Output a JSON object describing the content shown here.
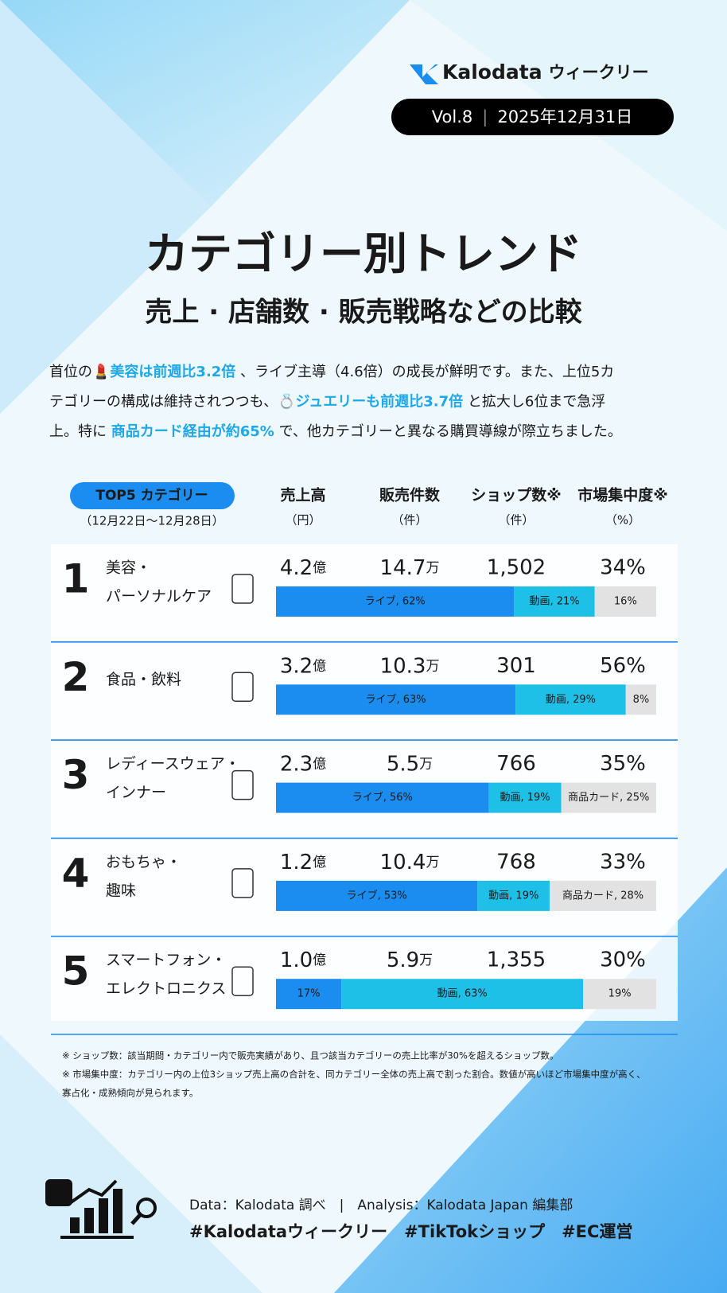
{
  "header": {
    "brand": "Kalodata",
    "series": "ウィークリー",
    "issue": "Vol.8",
    "separator": "|",
    "date": "2025年12月31日"
  },
  "title": "カテゴリー別トレンド",
  "subtitle": "売上 · 店舗数 · 販売戦略などの比較",
  "paragraph": {
    "lines": [
      [
        {
          "text": "首位の💄",
          "highlight": false
        },
        {
          "text": "美容は前週比3.2倍",
          "highlight": true
        },
        {
          "text": " 、ライブ主導（4.6倍）の成長が鮮明です。また、上位5カ",
          "highlight": false
        }
      ],
      [
        {
          "text": "テゴリーの構成は維持されつつも、💍",
          "highlight": false
        },
        {
          "text": "ジュエリーも前週比3.7倍",
          "highlight": true
        },
        {
          "text": " と拡大し6位まで急浮",
          "highlight": false
        }
      ],
      [
        {
          "text": "上。特に ",
          "highlight": false
        },
        {
          "text": "商品カード経由が約65%",
          "highlight": true
        },
        {
          "text": " で、他カテゴリーと異なる購買導線が際立ちました。",
          "highlight": false
        }
      ]
    ]
  },
  "table": {
    "badge": "TOP5 カテゴリー",
    "period": "（12月22日～12月28日）",
    "columns": [
      {
        "label": "売上高",
        "unit": "（円）"
      },
      {
        "label": "販売件数",
        "unit": "（件）"
      },
      {
        "label": "ショップ数※",
        "unit": "（件）"
      },
      {
        "label": "市場集中度※",
        "unit": "（%）"
      }
    ],
    "segment_colors": {
      "live": "#1b8cf0",
      "video": "#1ec0e8",
      "other": "#e2e2e2"
    },
    "rows": [
      {
        "rank": "1",
        "name": [
          "美容・",
          "パーソナルケア"
        ],
        "sales": {
          "value": "4.2",
          "unit": "億"
        },
        "count": {
          "value": "14.7",
          "unit": "万"
        },
        "shops": "1,502",
        "concentration": "34%",
        "segments": [
          {
            "label": "ライブ, 62%",
            "value": 62,
            "kind": "live"
          },
          {
            "label": "動画, 21%",
            "value": 21,
            "kind": "video"
          },
          {
            "label": "16%",
            "value": 16,
            "kind": "other"
          }
        ]
      },
      {
        "rank": "2",
        "name": [
          "食品・飲料"
        ],
        "sales": {
          "value": "3.2",
          "unit": "億"
        },
        "count": {
          "value": "10.3",
          "unit": "万"
        },
        "shops": "301",
        "concentration": "56%",
        "segments": [
          {
            "label": "ライブ, 63%",
            "value": 63,
            "kind": "live"
          },
          {
            "label": "動画, 29%",
            "value": 29,
            "kind": "video"
          },
          {
            "label": "8%",
            "value": 8,
            "kind": "other"
          }
        ]
      },
      {
        "rank": "3",
        "name": [
          "レディースウェア・",
          "インナー"
        ],
        "sales": {
          "value": "2.3",
          "unit": "億"
        },
        "count": {
          "value": "5.5",
          "unit": "万"
        },
        "shops": "766",
        "concentration": "35%",
        "segments": [
          {
            "label": "ライブ, 56%",
            "value": 56,
            "kind": "live"
          },
          {
            "label": "動画, 19%",
            "value": 19,
            "kind": "video"
          },
          {
            "label": "商品カード, 25%",
            "value": 25,
            "kind": "other"
          }
        ]
      },
      {
        "rank": "4",
        "name": [
          "おもちゃ・",
          "趣味"
        ],
        "sales": {
          "value": "1.2",
          "unit": "億"
        },
        "count": {
          "value": "10.4",
          "unit": "万"
        },
        "shops": "768",
        "concentration": "33%",
        "segments": [
          {
            "label": "ライブ, 53%",
            "value": 53,
            "kind": "live"
          },
          {
            "label": "動画, 19%",
            "value": 19,
            "kind": "video"
          },
          {
            "label": "商品カード, 28%",
            "value": 28,
            "kind": "other"
          }
        ]
      },
      {
        "rank": "5",
        "name": [
          "スマートフォン・",
          "エレクトロニクス"
        ],
        "sales": {
          "value": "1.0",
          "unit": "億"
        },
        "count": {
          "value": "5.9",
          "unit": "万"
        },
        "shops": "1,355",
        "concentration": "30%",
        "segments": [
          {
            "label": "17%",
            "value": 17,
            "kind": "live"
          },
          {
            "label": "動画, 63%",
            "value": 63,
            "kind": "video"
          },
          {
            "label": "19%",
            "value": 19,
            "kind": "other"
          }
        ]
      }
    ]
  },
  "notes": [
    "※ ショップ数：該当期間・カテゴリー内で販売実績があり、且つ該当カテゴリーの売上比率が30%を超えるショップ数。",
    "※ 市場集中度：カテゴリー内の上位3ショップ売上高の合計を、同カテゴリー全体の売上高で割った割合。数値が高いほど市場集中度が高く、",
    "寡占化・成熟傾向が見られます。"
  ],
  "footer": {
    "credit": "Data：Kalodata 調べ　|　Analysis：Kalodata Japan 編集部",
    "hashtags": "#Kalodataウィークリー　#TikTokショップ　#EC運営"
  }
}
